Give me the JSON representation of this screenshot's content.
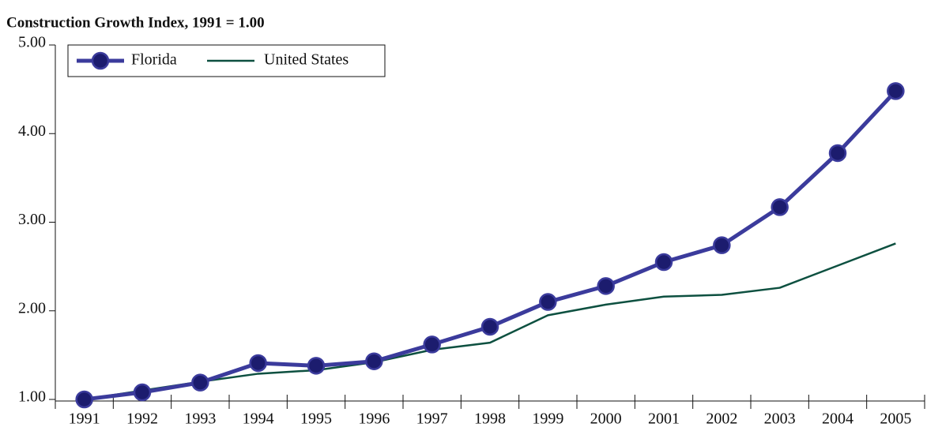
{
  "chart_data": {
    "type": "line",
    "title": "Construction Growth Index, 1991 = 1.00",
    "categories": [
      "1991",
      "1992",
      "1993",
      "1994",
      "1995",
      "1996",
      "1997",
      "1998",
      "1999",
      "2000",
      "2001",
      "2002",
      "2003",
      "2004",
      "2005"
    ],
    "series": [
      {
        "name": "Florida",
        "color": "#3b3b9c",
        "marker": "#1c1c6e",
        "values": [
          1.0,
          1.08,
          1.19,
          1.41,
          1.38,
          1.43,
          1.62,
          1.82,
          2.1,
          2.28,
          2.55,
          2.74,
          3.17,
          3.78,
          4.48
        ]
      },
      {
        "name": "United States",
        "color": "#0d5040",
        "values": [
          1.0,
          1.1,
          1.2,
          1.29,
          1.33,
          1.42,
          1.56,
          1.64,
          1.95,
          2.07,
          2.16,
          2.18,
          2.26,
          2.51,
          2.76
        ]
      }
    ],
    "ylim": [
      1,
      5
    ],
    "yticks": [
      {
        "value": 1,
        "label": "1.00"
      },
      {
        "value": 2,
        "label": "2.00"
      },
      {
        "value": 3,
        "label": "3.00"
      },
      {
        "value": 4,
        "label": "4.00"
      },
      {
        "value": 5,
        "label": "5.00"
      }
    ],
    "grid": false,
    "legend": "top-left"
  }
}
